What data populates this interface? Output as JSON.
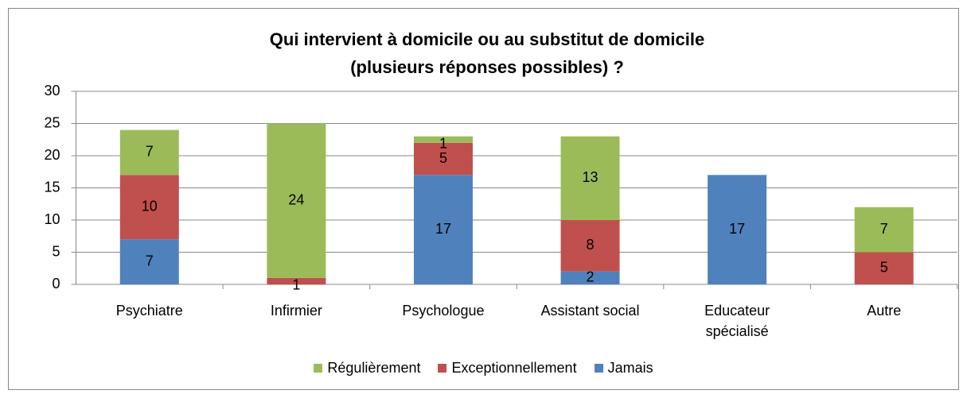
{
  "chart_data": {
    "type": "stacked_bar",
    "title": [
      "Qui intervient à domicile ou au substitut de domicile",
      "(plusieurs réponses possibles) ?"
    ],
    "categories": [
      "Psychiatre",
      "Infirmier",
      "Psychologue",
      "Assistant social",
      "Educateur spécialisé",
      "Autre"
    ],
    "series": [
      {
        "name": "Jamais",
        "color": "#4f81bd",
        "values": [
          7,
          null,
          17,
          2,
          17,
          null
        ]
      },
      {
        "name": "Exceptionnellement",
        "color": "#c0504d",
        "values": [
          10,
          1,
          5,
          8,
          null,
          5
        ]
      },
      {
        "name": "Régulièrement",
        "color": "#9bbb59",
        "values": [
          7,
          24,
          1,
          13,
          null,
          7
        ]
      }
    ],
    "ylim": [
      0,
      30
    ],
    "yticks": [
      0,
      5,
      10,
      15,
      20,
      25,
      30
    ],
    "grid": true,
    "legend": "bottom"
  }
}
